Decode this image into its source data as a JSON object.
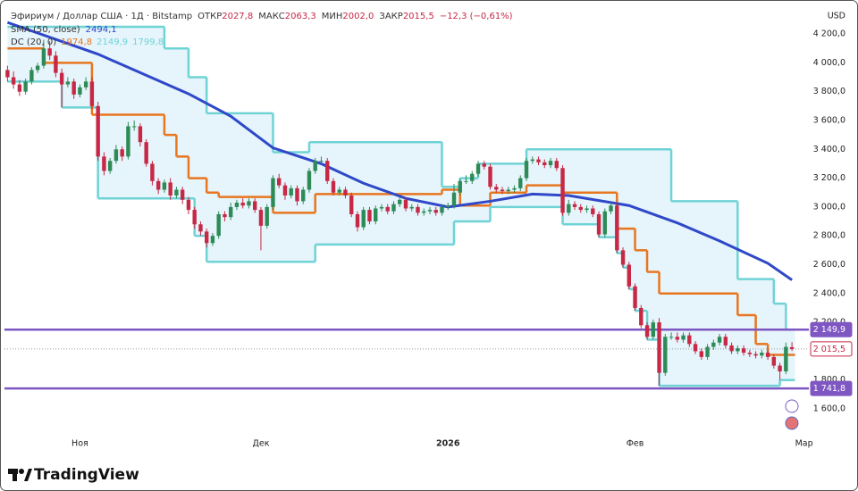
{
  "chart_data": {
    "type": "candlestick",
    "title": "Эфириум / Доллар США · 1Д · Bitstamp",
    "ohlc_header": [
      {
        "label": "ОТКР",
        "value": "2027,8"
      },
      {
        "label": "МАКС",
        "value": "2063,3"
      },
      {
        "label": "МИН",
        "value": "2002,0"
      },
      {
        "label": "ЗАКР",
        "value": "2015,5"
      }
    ],
    "change": "−12,3 (−0,61%)",
    "currency": "USD",
    "up_color": "#2e8b57",
    "down_color": "#c62845",
    "grid": false,
    "xlim": [
      -0.5,
      132.8
    ],
    "ylim": [
      1464,
      4386
    ],
    "xticks": [
      {
        "value": 12,
        "label": "Ноя"
      },
      {
        "value": 42,
        "label": "Дек"
      },
      {
        "value": 73,
        "label": "2026"
      },
      {
        "value": 104,
        "label": "Фев"
      },
      {
        "value": 132,
        "label": "Мар"
      }
    ],
    "yticks": [
      {
        "value": 1600,
        "label": "1 600,0"
      },
      {
        "value": 1800,
        "label": "1 800,0"
      },
      {
        "value": 2200,
        "label": "2 200,0"
      },
      {
        "value": 2400,
        "label": "2 400,0"
      },
      {
        "value": 2600,
        "label": "2 600,0"
      },
      {
        "value": 2800,
        "label": "2 800,0"
      },
      {
        "value": 3000,
        "label": "3 000,0"
      },
      {
        "value": 3200,
        "label": "3 200,0"
      },
      {
        "value": 3400,
        "label": "3 400,0"
      },
      {
        "value": 3600,
        "label": "3 600,0"
      },
      {
        "value": 3800,
        "label": "3 800,0"
      },
      {
        "value": 4000,
        "label": "4 000,0"
      },
      {
        "value": 4200,
        "label": "4 200,0"
      }
    ],
    "candles": {
      "open": [
        3950,
        3900,
        3850,
        3800,
        3870,
        3950,
        3980,
        4100,
        4050,
        3930,
        3850,
        3870,
        3780,
        3830,
        3870,
        3700,
        3350,
        3250,
        3320,
        3400,
        3350,
        3560,
        3560,
        3450,
        3300,
        3180,
        3120,
        3170,
        3080,
        3120,
        3050,
        2980,
        2880,
        2830,
        2750,
        2800,
        2950,
        2930,
        3000,
        3030,
        3010,
        3040,
        2980,
        2870,
        3000,
        3200,
        3150,
        3080,
        3130,
        3040,
        3120,
        3250,
        3320,
        3320,
        3180,
        3100,
        3120,
        3080,
        2950,
        2860,
        2980,
        2900,
        2990,
        3000,
        2970,
        3020,
        3050,
        2990,
        3000,
        2960,
        2970,
        2980,
        2960,
        3000,
        3010,
        3100,
        3180,
        3180,
        3230,
        3300,
        3280,
        3140,
        3120,
        3110,
        3120,
        3130,
        3200,
        3320,
        3330,
        3310,
        3290,
        3320,
        3270,
        2960,
        3020,
        3000,
        2980,
        2990,
        2950,
        2810,
        2970,
        3010,
        2700,
        2600,
        2450,
        2300,
        2180,
        2100,
        2200,
        1850,
        2100,
        2100,
        2080,
        2110,
        2050,
        2000,
        1960,
        2030,
        2060,
        2100,
        2040,
        2000,
        2020,
        1990,
        1980,
        1970,
        1990,
        1960,
        1900,
        1860,
        2027.8
      ],
      "high": [
        3980,
        3940,
        3880,
        3890,
        3970,
        4000,
        4160,
        4150,
        4080,
        3960,
        3900,
        3890,
        3850,
        3900,
        3900,
        3730,
        3380,
        3340,
        3430,
        3420,
        3590,
        3600,
        3580,
        3470,
        3320,
        3200,
        3190,
        3200,
        3140,
        3140,
        3070,
        3000,
        2900,
        2850,
        2820,
        2970,
        2970,
        3030,
        3050,
        3060,
        3060,
        3060,
        3000,
        3020,
        3220,
        3230,
        3170,
        3150,
        3150,
        3140,
        3270,
        3340,
        3350,
        3340,
        3200,
        3140,
        3140,
        3100,
        2970,
        3000,
        3000,
        3010,
        3020,
        3020,
        3040,
        3070,
        3070,
        3020,
        3020,
        2990,
        3000,
        3000,
        3020,
        3030,
        3160,
        3200,
        3220,
        3250,
        3320,
        3320,
        3300,
        3160,
        3140,
        3140,
        3150,
        3220,
        3340,
        3350,
        3350,
        3330,
        3340,
        3340,
        3290,
        3050,
        3040,
        3020,
        3010,
        3010,
        2970,
        2990,
        3030,
        3030,
        2720,
        2620,
        2470,
        2320,
        2200,
        2220,
        2230,
        2120,
        2130,
        2130,
        2130,
        2130,
        2070,
        2020,
        2050,
        2080,
        2120,
        2120,
        2060,
        2040,
        2040,
        2010,
        2000,
        2010,
        2010,
        1980,
        1920,
        2060,
        2063.3
      ],
      "low": [
        3870,
        3820,
        3770,
        3780,
        3850,
        3930,
        3960,
        4020,
        3900,
        3690,
        3830,
        3750,
        3760,
        3810,
        3680,
        3320,
        3220,
        3230,
        3300,
        3320,
        3330,
        3530,
        3420,
        3280,
        3150,
        3090,
        3100,
        3050,
        3060,
        3020,
        2950,
        2850,
        2800,
        2720,
        2730,
        2780,
        2900,
        2910,
        2980,
        2990,
        2990,
        2960,
        2700,
        2850,
        2980,
        3130,
        3050,
        3060,
        3010,
        3020,
        3100,
        3230,
        3300,
        3160,
        3080,
        3080,
        3060,
        2930,
        2830,
        2840,
        2880,
        2880,
        2970,
        2950,
        2950,
        3000,
        2970,
        2970,
        2940,
        2940,
        2950,
        2940,
        2940,
        2980,
        2990,
        3080,
        3160,
        3160,
        3210,
        3260,
        3120,
        3100,
        3090,
        3090,
        3100,
        3110,
        3180,
        3300,
        3290,
        3270,
        3270,
        3250,
        2940,
        2940,
        2980,
        2960,
        2960,
        2930,
        2790,
        2790,
        2950,
        2680,
        2580,
        2430,
        2280,
        2160,
        2080,
        2080,
        1760,
        1830,
        2080,
        2060,
        2060,
        2030,
        1980,
        1940,
        1940,
        2010,
        2040,
        2020,
        1980,
        1980,
        1970,
        1960,
        1950,
        1950,
        1940,
        1880,
        1800,
        1840,
        2002.0
      ],
      "close": [
        3900,
        3850,
        3800,
        3870,
        3950,
        3980,
        4100,
        4050,
        3930,
        3850,
        3870,
        3780,
        3830,
        3870,
        3700,
        3350,
        3250,
        3320,
        3400,
        3350,
        3560,
        3560,
        3450,
        3300,
        3180,
        3120,
        3170,
        3080,
        3120,
        3050,
        2980,
        2880,
        2830,
        2750,
        2800,
        2950,
        2930,
        3000,
        3030,
        3010,
        3040,
        2980,
        2870,
        3000,
        3200,
        3150,
        3080,
        3130,
        3040,
        3120,
        3250,
        3320,
        3320,
        3180,
        3100,
        3120,
        3080,
        2950,
        2860,
        2980,
        2900,
        2990,
        3000,
        2970,
        3020,
        3050,
        2990,
        3000,
        2960,
        2970,
        2980,
        2960,
        3000,
        3010,
        3100,
        3180,
        3180,
        3230,
        3300,
        3280,
        3140,
        3120,
        3110,
        3120,
        3130,
        3200,
        3320,
        3330,
        3310,
        3290,
        3320,
        3270,
        2960,
        3020,
        3000,
        2980,
        2990,
        2950,
        2810,
        2970,
        3010,
        2700,
        2600,
        2450,
        2300,
        2180,
        2100,
        2200,
        1850,
        2100,
        2100,
        2080,
        2110,
        2050,
        2000,
        1960,
        2030,
        2060,
        2100,
        2040,
        2000,
        2020,
        1990,
        1980,
        1970,
        1990,
        1960,
        1900,
        1860,
        2030,
        2015.5
      ]
    },
    "sma": {
      "label": "SMA (50, close)",
      "value_label": "2494,1",
      "color": "#2f48c9",
      "x": [
        0,
        15,
        30,
        37,
        44,
        52,
        59,
        66,
        73,
        80,
        87,
        93,
        103,
        111,
        118,
        126,
        130
      ],
      "values": [
        4280,
        4060,
        3785,
        3630,
        3410,
        3300,
        3165,
        3060,
        3000,
        3040,
        3090,
        3080,
        3010,
        2890,
        2765,
        2610,
        2494.1
      ]
    },
    "donchian": {
      "label": "DC (20, 0)",
      "value_labels": [
        "1974,8",
        "2149,9",
        "1799,8"
      ],
      "fill": "#e6f4fb",
      "basis": {
        "color": "#e8761f",
        "x": [
          0,
          6,
          14,
          26,
          28,
          30,
          33,
          35,
          44,
          51,
          72,
          75,
          80,
          86,
          92,
          101,
          104,
          106,
          108,
          121,
          124,
          126
        ],
        "values": [
          4100,
          4000,
          3640,
          3500,
          3350,
          3200,
          3100,
          3070,
          2960,
          3090,
          3120,
          3010,
          3100,
          3150,
          3100,
          2850,
          2700,
          2550,
          2400,
          2250,
          2050,
          1974.8
        ]
      },
      "upper": {
        "color": "#6fd3d6",
        "x": [
          0,
          26,
          30,
          33,
          44,
          50,
          72,
          75,
          78,
          86,
          110,
          121,
          127,
          129
        ],
        "values": [
          4250,
          4100,
          3900,
          3650,
          3380,
          3450,
          3140,
          3200,
          3300,
          3400,
          3040,
          2500,
          2330,
          2149.9
        ]
      },
      "lower": {
        "color": "#6fd3d6",
        "x": [
          0,
          9,
          15,
          31,
          33,
          51,
          74,
          80,
          92,
          98,
          101,
          102,
          103,
          104,
          106,
          108,
          128
        ],
        "values": [
          3870,
          3690,
          3060,
          2800,
          2620,
          2740,
          2900,
          3000,
          2880,
          2790,
          2680,
          2580,
          2430,
          2280,
          2080,
          1760,
          1799.8
        ]
      }
    },
    "hlines": [
      {
        "value": 2149.9,
        "label": "2 149,9",
        "color": "#7e57c2"
      },
      {
        "value": 1741.8,
        "label": "1 741,8",
        "color": "#7e57c2"
      }
    ],
    "last_price": {
      "value": 2015.5,
      "label": "2 015,5",
      "color": "#c62845"
    }
  },
  "branding": {
    "name": "TradingView"
  }
}
